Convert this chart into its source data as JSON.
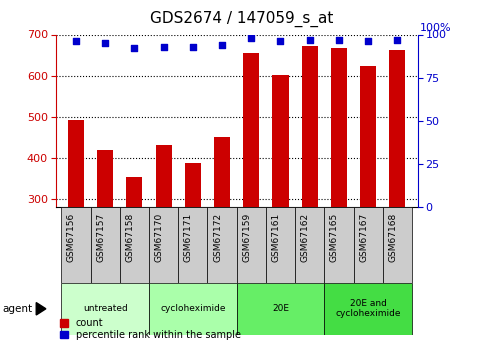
{
  "title": "GDS2674 / 147059_s_at",
  "samples": [
    "GSM67156",
    "GSM67157",
    "GSM67158",
    "GSM67170",
    "GSM67171",
    "GSM67172",
    "GSM67159",
    "GSM67161",
    "GSM67162",
    "GSM67165",
    "GSM67167",
    "GSM67168"
  ],
  "counts": [
    493,
    420,
    354,
    432,
    388,
    450,
    655,
    601,
    672,
    668,
    623,
    663
  ],
  "percentiles": [
    96,
    95,
    92,
    93,
    93,
    94,
    98,
    96,
    97,
    97,
    96,
    97
  ],
  "bar_color": "#cc0000",
  "dot_color": "#0000cc",
  "ylim_left": [
    280,
    700
  ],
  "ylim_right": [
    0,
    100
  ],
  "yticks_left": [
    300,
    400,
    500,
    600,
    700
  ],
  "yticks_right": [
    0,
    25,
    50,
    75,
    100
  ],
  "groups": [
    {
      "label": "untreated",
      "start": 0,
      "end": 3,
      "color": "#ccffcc"
    },
    {
      "label": "cycloheximide",
      "start": 3,
      "end": 6,
      "color": "#aaffaa"
    },
    {
      "label": "20E",
      "start": 6,
      "end": 9,
      "color": "#66ee66"
    },
    {
      "label": "20E and\ncycloheximide",
      "start": 9,
      "end": 12,
      "color": "#44dd44"
    }
  ],
  "agent_label": "agent",
  "legend_count_label": "count",
  "legend_percentile_label": "percentile rank within the sample",
  "title_fontsize": 11,
  "tick_fontsize": 8,
  "bar_bottom": 280,
  "sample_box_color": "#cccccc",
  "background": "#ffffff"
}
